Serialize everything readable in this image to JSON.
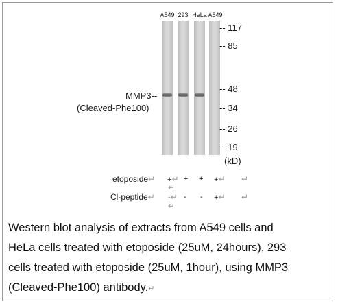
{
  "lanes": [
    "A549",
    "293",
    "HeLa",
    "A549"
  ],
  "bands": [
    true,
    true,
    true,
    false
  ],
  "markers": [
    "117",
    "85",
    "48",
    "34",
    "26",
    "19"
  ],
  "unit": "(kD)",
  "band_label_line1": "MMP3--",
  "band_label_line2": "(Cleaved-Phe100)",
  "treatments": [
    {
      "label": "etoposide",
      "values": [
        "+",
        "+",
        "+",
        "+"
      ]
    },
    {
      "label": "Cl-peptide",
      "values": [
        "-",
        "-",
        "-",
        "+"
      ]
    }
  ],
  "paragraph_mark": "↵",
  "caption_lines": [
    "Western blot analysis of extracts from A549 cells and",
    "HeLa cells treated with etoposide (25uM, 24hours), 293",
    "cells treated with etoposide (25uM, 1hour), using MMP3",
    "(Cleaved-Phe100) antibody."
  ]
}
